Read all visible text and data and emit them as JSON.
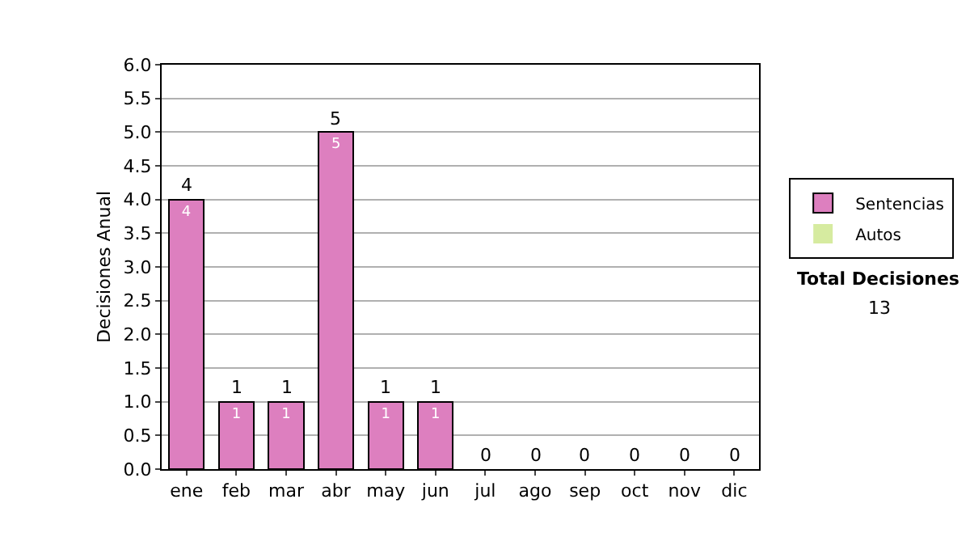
{
  "chart_data": {
    "type": "bar",
    "ylabel": "Decisiones Anual",
    "categories": [
      "ene",
      "feb",
      "mar",
      "abr",
      "may",
      "jun",
      "jul",
      "ago",
      "sep",
      "oct",
      "nov",
      "dic"
    ],
    "series": [
      {
        "name": "Sentencias",
        "color": "#dd7fbf",
        "values": [
          4,
          1,
          1,
          5,
          1,
          1,
          0,
          0,
          0,
          0,
          0,
          0
        ],
        "value_labels": [
          "4",
          "1",
          "1",
          "5",
          "1",
          "1",
          null,
          null,
          null,
          null,
          null,
          null
        ]
      },
      {
        "name": "Autos",
        "color": "#d6eba0",
        "values": [
          0,
          0,
          0,
          0,
          0,
          0,
          0,
          0,
          0,
          0,
          0,
          0
        ]
      }
    ],
    "stacked": true,
    "totals": [
      "4",
      "1",
      "1",
      "5",
      "1",
      "1",
      "0",
      "0",
      "0",
      "0",
      "0",
      "0"
    ],
    "ylim": [
      0,
      6
    ],
    "yticks": [
      "0.0",
      "0.5",
      "1.0",
      "1.5",
      "2.0",
      "2.5",
      "3.0",
      "3.5",
      "4.0",
      "4.5",
      "5.0",
      "5.5",
      "6.0"
    ],
    "grid": "y",
    "legend": "right",
    "annotations": [
      "Total Decisiones",
      "13"
    ]
  }
}
